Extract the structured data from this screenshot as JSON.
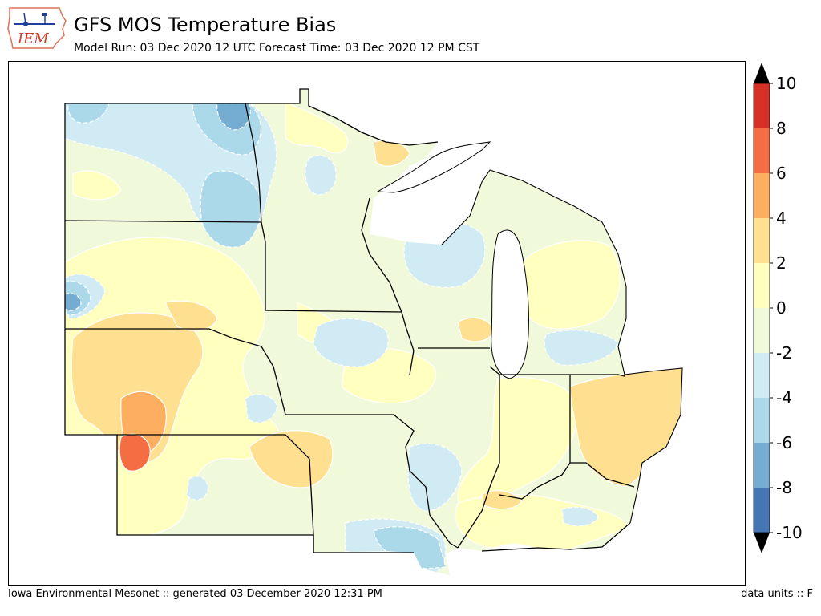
{
  "header": {
    "title": "GFS MOS Temperature Bias",
    "subtitle": "Model Run: 03 Dec 2020 12 UTC Forecast Time: 03 Dec 2020 12 PM CST",
    "logo_text": "IEM"
  },
  "footer": {
    "left": "Iowa Environmental Mesonet :: generated 03 December 2020 12:31 PM",
    "right": "data units :: F"
  },
  "colorbar": {
    "tick_labels": [
      "10",
      "8",
      "6",
      "4",
      "2",
      "0",
      "-2",
      "-4",
      "-6",
      "-8",
      "-10"
    ],
    "bins": [
      {
        "range": "8 to 10",
        "color": "#d73027"
      },
      {
        "range": "6 to 8",
        "color": "#f46d43"
      },
      {
        "range": "4 to 6",
        "color": "#fdae61"
      },
      {
        "range": "2 to 4",
        "color": "#fee090"
      },
      {
        "range": "0 to 2",
        "color": "#ffffbf"
      },
      {
        "range": "-2 to 0",
        "color": "#f1f9db"
      },
      {
        "range": "-4 to -2",
        "color": "#d1ebf4"
      },
      {
        "range": "-6 to -4",
        "color": "#abd9e9"
      },
      {
        "range": "-8 to -6",
        "color": "#74add1"
      },
      {
        "range": "-10 to -8",
        "color": "#4575b4"
      }
    ],
    "over_color": "#000000",
    "under_color": "#000000"
  },
  "map": {
    "variable": "Temperature Bias",
    "units": "F",
    "base_color": "#f1f9db",
    "lake_color": "#ffffff"
  }
}
